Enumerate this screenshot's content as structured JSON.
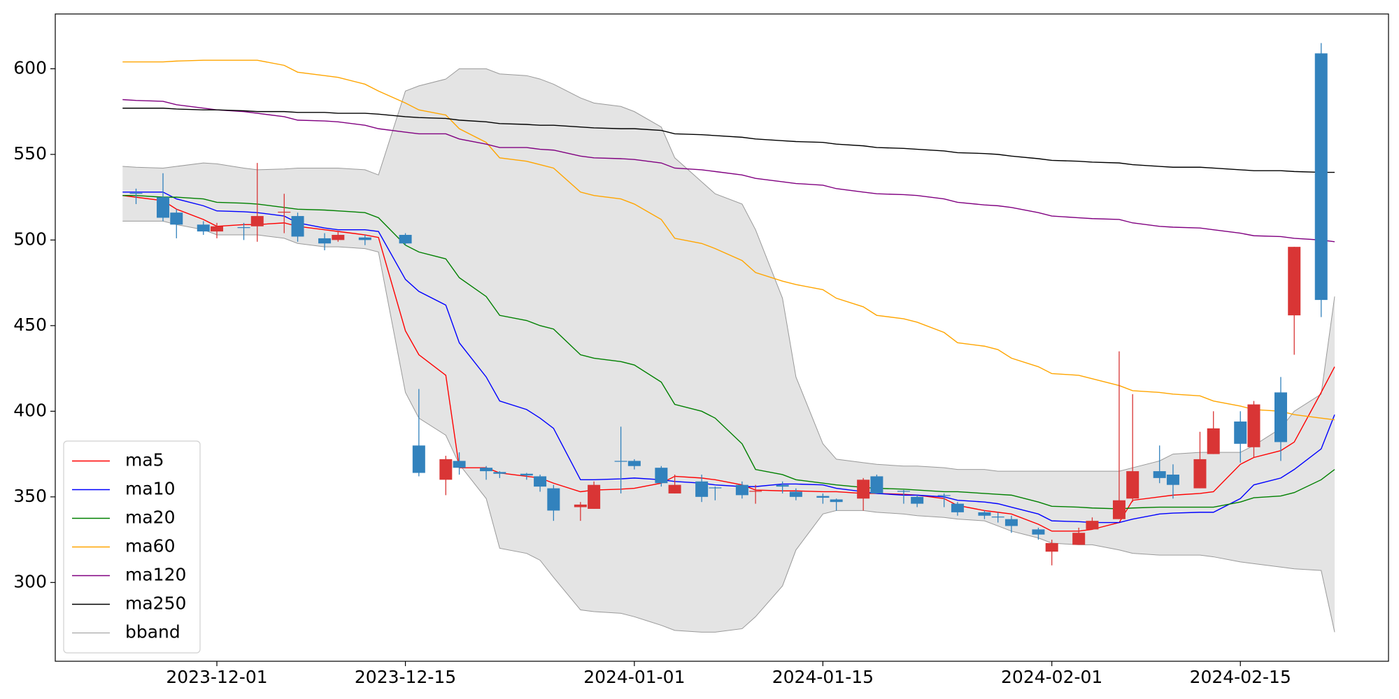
{
  "chart_data": {
    "type": "candlestick",
    "x": [
      "2023-11-24",
      "2023-11-25",
      "2023-11-27",
      "2023-11-28",
      "2023-11-30",
      "2023-12-01",
      "2023-12-03",
      "2023-12-04",
      "2023-12-06",
      "2023-12-07",
      "2023-12-09",
      "2023-12-10",
      "2023-12-12",
      "2023-12-13",
      "2023-12-15",
      "2023-12-16",
      "2023-12-18",
      "2023-12-19",
      "2023-12-21",
      "2023-12-22",
      "2023-12-24",
      "2023-12-25",
      "2023-12-26",
      "2023-12-28",
      "2023-12-29",
      "2023-12-31",
      "2024-01-01",
      "2024-01-03",
      "2024-01-04",
      "2024-01-06",
      "2024-01-07",
      "2024-01-09",
      "2024-01-10",
      "2024-01-12",
      "2024-01-13",
      "2024-01-15",
      "2024-01-16",
      "2024-01-18",
      "2024-01-19",
      "2024-01-21",
      "2024-01-22",
      "2024-01-24",
      "2024-01-25",
      "2024-01-27",
      "2024-01-28",
      "2024-01-29",
      "2024-01-31",
      "2024-02-01",
      "2024-02-03",
      "2024-02-04",
      "2024-02-06",
      "2024-02-07",
      "2024-02-09",
      "2024-02-10",
      "2024-02-12",
      "2024-02-13",
      "2024-02-15",
      "2024-02-16",
      "2024-02-18",
      "2024-02-19",
      "2024-02-21",
      "2024-02-22"
    ],
    "open": [
      null,
      527,
      513,
      509,
      505,
      508,
      507,
      514,
      516.5,
      502,
      498,
      503,
      500,
      null,
      498,
      364,
      372,
      367,
      365,
      363.5,
      362.5,
      356,
      342,
      345.5,
      357,
      370.5,
      368,
      358,
      357,
      350,
      355,
      351,
      353.5,
      356,
      350,
      349.5,
      347,
      360,
      352,
      353,
      346,
      350.5,
      341,
      339,
      338,
      333,
      328,
      323,
      329,
      336,
      348,
      365,
      361,
      357,
      372,
      390,
      381,
      404,
      382,
      496,
      465,
      null
    ],
    "high": [
      null,
      530,
      539,
      518,
      511,
      510,
      510,
      545,
      527,
      516,
      504,
      505,
      503,
      null,
      504,
      413,
      374,
      376,
      368,
      365,
      364,
      363,
      357,
      347,
      359,
      391,
      372,
      368,
      363,
      363,
      356,
      359,
      357,
      359,
      355,
      352,
      349,
      361,
      363,
      354,
      351,
      352,
      347,
      342,
      341,
      339,
      332,
      325,
      332,
      338,
      435,
      410,
      380,
      369,
      388,
      400,
      400,
      406,
      420,
      496,
      615,
      null
    ],
    "low": [
      null,
      521,
      511,
      501,
      503,
      501,
      500,
      499,
      504,
      499,
      494,
      499,
      497,
      null,
      497,
      362,
      351,
      363,
      360,
      361,
      360,
      353,
      336,
      336,
      343,
      352,
      366,
      356,
      352,
      347,
      348,
      349,
      346,
      352,
      348,
      346,
      342,
      342,
      352,
      346,
      344,
      344,
      339,
      337,
      335,
      329,
      325,
      310,
      322,
      331,
      337,
      347,
      358,
      349,
      355,
      375,
      370,
      373,
      371,
      433,
      455,
      null
    ],
    "close": [
      null,
      527.5,
      525,
      516,
      509,
      505,
      507.5,
      508,
      516,
      514,
      501,
      500,
      501.5,
      null,
      503,
      380,
      360,
      371,
      367,
      364.5,
      363.5,
      362,
      355,
      344,
      343,
      371,
      371,
      367,
      352,
      359,
      355.5,
      357,
      353,
      357,
      353,
      350.5,
      348.5,
      349,
      362,
      353.5,
      350,
      351,
      346,
      341,
      338.5,
      337,
      331,
      318,
      322,
      331,
      337,
      349,
      365,
      363,
      355,
      375,
      394,
      379,
      411,
      456,
      609,
      null
    ],
    "up_color": "#3282bd",
    "down_color": "#d93535",
    "series": [
      {
        "name": "ma5",
        "color": "#ff0000",
        "values": [
          526,
          525,
          523,
          518,
          512,
          508,
          509,
          509,
          510,
          508,
          506,
          505,
          503,
          501.5,
          447,
          433,
          421,
          367,
          367,
          364,
          362,
          361,
          358,
          353,
          354,
          354.5,
          355,
          358,
          362,
          361,
          360,
          357,
          354,
          353.5,
          353.5,
          353,
          353,
          352,
          352,
          351.5,
          351,
          349,
          345,
          342,
          341,
          340,
          334,
          330,
          330,
          331,
          335,
          348,
          350,
          351,
          352,
          353,
          369,
          373,
          377,
          382,
          411,
          426
        ]
      },
      {
        "name": "ma10",
        "color": "#0000ff",
        "values": [
          528,
          528,
          528,
          524,
          520,
          517,
          516.5,
          516,
          514,
          510,
          507,
          506,
          506,
          505,
          477,
          470,
          462,
          440,
          420,
          406,
          401,
          396,
          390,
          360,
          360,
          360.5,
          361,
          360,
          359,
          358,
          357,
          356,
          356,
          357.5,
          357.5,
          357,
          355,
          353,
          352,
          351,
          351,
          350,
          348,
          347,
          346,
          344,
          340,
          336,
          335.5,
          335,
          335,
          337,
          340,
          340.5,
          341,
          341,
          349,
          357,
          361,
          366,
          378,
          398
        ]
      },
      {
        "name": "ma20",
        "color": "#008000",
        "values": [
          526,
          526,
          525,
          525,
          524,
          522,
          521.5,
          521,
          519,
          518,
          517.5,
          517,
          516,
          513,
          497,
          493,
          489,
          478,
          467,
          456,
          453,
          450,
          448,
          433,
          431,
          429,
          427,
          417,
          404,
          400,
          396,
          381,
          366,
          363,
          360,
          358,
          357,
          355.5,
          355,
          354.5,
          354,
          353,
          353,
          352,
          351.5,
          351,
          347,
          344.5,
          344,
          343.5,
          343,
          343.5,
          344,
          344,
          344,
          344,
          347,
          349.5,
          350.5,
          352.5,
          360,
          366
        ]
      },
      {
        "name": "ma60",
        "color": "#ffa500",
        "values": [
          604,
          604,
          604,
          604.5,
          605,
          605,
          605,
          605,
          602,
          598,
          596,
          595,
          591,
          587,
          580,
          576,
          573,
          565,
          557,
          548,
          546,
          544,
          542,
          528,
          526,
          524,
          521,
          512,
          501,
          498,
          495,
          488,
          481,
          476,
          474,
          471,
          466,
          461,
          456,
          454,
          452,
          446,
          440,
          438,
          436,
          431,
          426,
          422,
          421,
          419,
          415,
          412,
          411,
          410,
          409,
          406,
          403,
          401,
          400,
          398,
          396,
          395
        ]
      },
      {
        "name": "ma120",
        "color": "#800080",
        "values": [
          582,
          581.5,
          581,
          579,
          577,
          576,
          575,
          574,
          572,
          570,
          569.5,
          569,
          567,
          565,
          563,
          562,
          562,
          559,
          556,
          554,
          554,
          553,
          552.5,
          549,
          548,
          547.5,
          547,
          545,
          542,
          541,
          540,
          538,
          536,
          534,
          533,
          532,
          530,
          528,
          527,
          526.5,
          526,
          524,
          522,
          520.5,
          520,
          519,
          516,
          514,
          513,
          512.5,
          512,
          510,
          508,
          507.5,
          507,
          506,
          504,
          502.5,
          502,
          501,
          500,
          499
        ]
      },
      {
        "name": "ma250",
        "color": "#000000",
        "values": [
          577,
          577,
          577,
          576.5,
          576,
          576,
          575.5,
          575,
          575,
          574.5,
          574.5,
          574,
          574,
          573.5,
          572,
          571.5,
          571,
          570,
          569,
          568,
          567.5,
          567,
          567,
          566,
          565.5,
          565,
          565,
          564,
          562,
          561.5,
          561,
          560,
          559,
          558,
          557.5,
          557,
          556,
          555,
          554,
          553.5,
          553,
          552,
          551,
          550.5,
          550,
          549,
          547.5,
          546.5,
          546,
          545.5,
          545,
          544,
          543,
          542.5,
          542.5,
          542,
          541,
          540.5,
          540.5,
          540,
          539.5,
          539.5
        ]
      }
    ],
    "band": {
      "name": "bband",
      "color": "#999999",
      "fill": "#e4e4e4",
      "upper": [
        543,
        542.5,
        542,
        543,
        545,
        544.5,
        542,
        541,
        541.5,
        542,
        542,
        542,
        541,
        538,
        587,
        590,
        594,
        600,
        600,
        597,
        596,
        594,
        591,
        583,
        580,
        578,
        575,
        566,
        548,
        534,
        527,
        521,
        506,
        466,
        420,
        381,
        372,
        370,
        369,
        368,
        368,
        367,
        366,
        366,
        365,
        365,
        365,
        365,
        365,
        365,
        365,
        367,
        371,
        375,
        376,
        376,
        376,
        380,
        390,
        400,
        410,
        467
      ],
      "lower": [
        511,
        511,
        511,
        509,
        506,
        503,
        503,
        503,
        501,
        498,
        496,
        496,
        495,
        493,
        411,
        396,
        386,
        369,
        349,
        320,
        317,
        313,
        303,
        284,
        283,
        282,
        280,
        275,
        272,
        271,
        271,
        273,
        280,
        298,
        319,
        340,
        342,
        342,
        341,
        340,
        339,
        338,
        337,
        336,
        333,
        330,
        326,
        323,
        322,
        322,
        319,
        317,
        316,
        316,
        316,
        315,
        312,
        311,
        309,
        308,
        307,
        271
      ]
    },
    "xlim": [
      "2023-11-19",
      "2024-02-26"
    ],
    "xticks": [
      "2023-12-01",
      "2023-12-15",
      "2024-01-01",
      "2024-01-15",
      "2024-02-01",
      "2024-02-15"
    ],
    "ylim": [
      254,
      632
    ],
    "yticks": [
      300,
      350,
      400,
      450,
      500,
      550,
      600
    ],
    "legend": "lower left"
  }
}
